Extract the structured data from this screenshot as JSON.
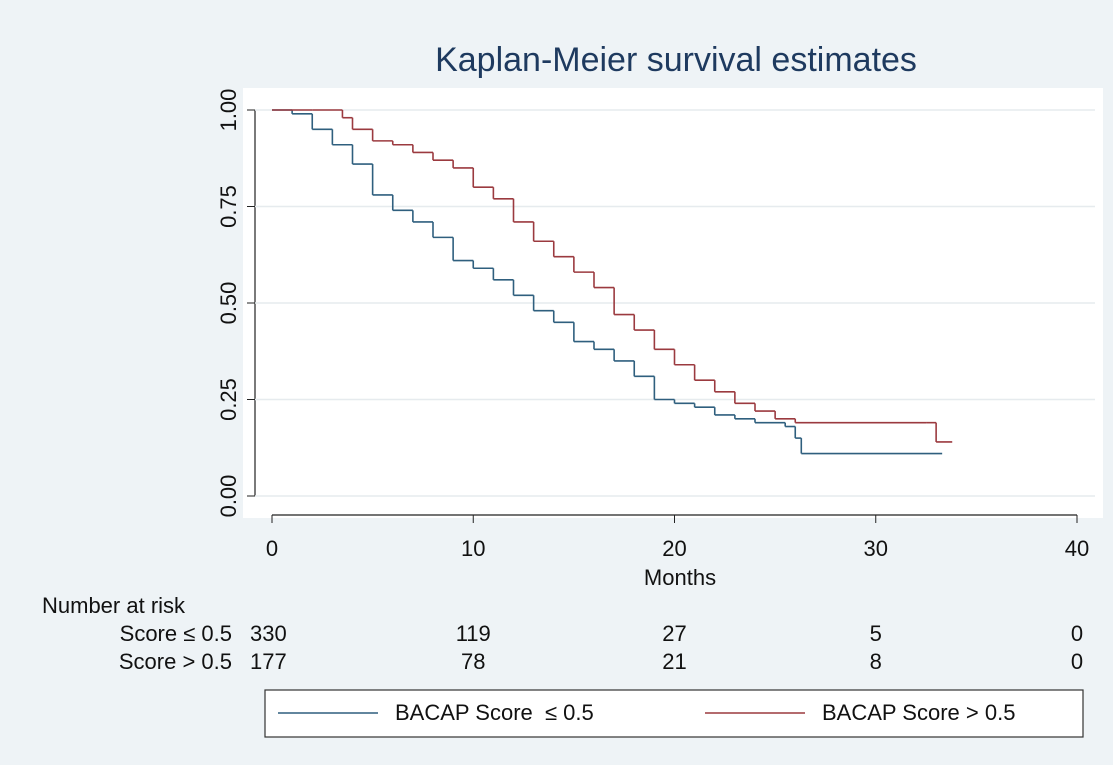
{
  "chart_data": {
    "type": "step",
    "title": "Kaplan-Meier survival estimates",
    "x_label": "Months",
    "xlim": [
      0,
      40
    ],
    "xticks": [
      0,
      10,
      20,
      30,
      40
    ],
    "ylim": [
      0,
      1
    ],
    "yticks": [
      {
        "value": 0,
        "label": "0.00"
      },
      {
        "value": 0.25,
        "label": "0.25"
      },
      {
        "value": 0.5,
        "label": "0.50"
      },
      {
        "value": 0.75,
        "label": "0.75"
      },
      {
        "value": 1,
        "label": "1.00"
      }
    ],
    "grid": true,
    "series": [
      {
        "name": "BACAP Score  ≤ 0.5",
        "color": "#2f5f7e",
        "x": [
          0,
          1,
          2,
          3,
          4,
          5,
          6,
          7,
          8,
          9,
          10,
          11,
          12,
          13,
          14,
          15,
          16,
          17,
          18,
          19,
          20,
          21,
          22,
          23,
          24,
          25.5,
          26,
          26.3,
          33.3
        ],
        "values": [
          1.0,
          0.99,
          0.95,
          0.91,
          0.86,
          0.78,
          0.74,
          0.71,
          0.67,
          0.61,
          0.59,
          0.56,
          0.52,
          0.48,
          0.45,
          0.4,
          0.38,
          0.35,
          0.31,
          0.25,
          0.24,
          0.23,
          0.21,
          0.2,
          0.19,
          0.18,
          0.15,
          0.11,
          0.11
        ]
      },
      {
        "name": "BACAP Score > 0.5",
        "color": "#9b3a3f",
        "x": [
          0,
          2,
          3.5,
          4,
          5,
          6,
          7,
          8,
          9,
          10,
          11,
          12,
          13,
          14,
          15,
          16,
          17,
          18,
          19,
          20,
          21,
          22,
          23,
          24,
          25,
          26,
          32.5,
          33,
          33.8
        ],
        "values": [
          1.0,
          1.0,
          0.98,
          0.95,
          0.92,
          0.91,
          0.89,
          0.87,
          0.85,
          0.8,
          0.77,
          0.71,
          0.66,
          0.62,
          0.58,
          0.54,
          0.47,
          0.43,
          0.38,
          0.34,
          0.3,
          0.27,
          0.24,
          0.22,
          0.2,
          0.19,
          0.19,
          0.14,
          0.14
        ]
      }
    ],
    "risk_table": {
      "title": "Number at risk",
      "rows": [
        {
          "label": "Score  ≤ 0.5",
          "values": [
            330,
            119,
            27,
            5,
            0
          ]
        },
        {
          "label": "Score > 0.5",
          "values": [
            177,
            78,
            21,
            8,
            0
          ]
        }
      ]
    }
  }
}
